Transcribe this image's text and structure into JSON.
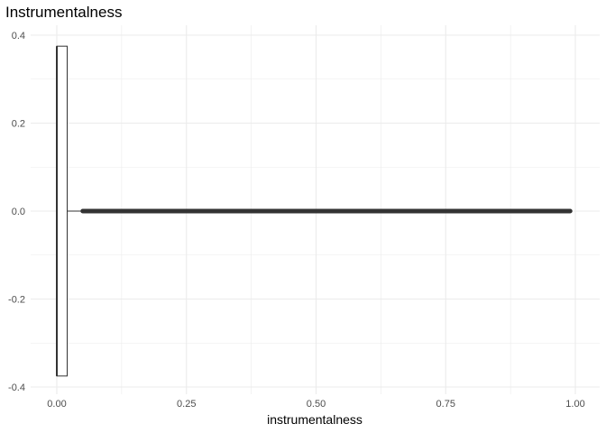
{
  "chart_data": {
    "type": "boxplot",
    "title": "Instrumentalness",
    "xlabel": "instrumentalness",
    "ylabel": "",
    "xlim": [
      -0.03,
      1.01
    ],
    "ylim": [
      -0.4,
      0.41
    ],
    "x_ticks": [
      {
        "value": 0.0,
        "label": "0.00"
      },
      {
        "value": 0.25,
        "label": "0.25"
      },
      {
        "value": 0.5,
        "label": "0.50"
      },
      {
        "value": 0.75,
        "label": "0.75"
      },
      {
        "value": 1.0,
        "label": "1.00"
      }
    ],
    "y_ticks": [
      {
        "value": 0.4,
        "label": "0.4"
      },
      {
        "value": 0.2,
        "label": "0.2"
      },
      {
        "value": 0.0,
        "label": "0.0"
      },
      {
        "value": -0.2,
        "label": "-0.2"
      },
      {
        "value": -0.4,
        "label": "-0.4"
      }
    ],
    "grid": true,
    "box": {
      "min": 0.0,
      "q1": 0.0,
      "median": 0.0,
      "q3": 0.02,
      "upper_whisker": 0.05,
      "y_center": 0.0,
      "half_height": 0.375
    },
    "outliers": {
      "range": [
        0.05,
        0.99
      ],
      "y": 0.0,
      "description": "dense continuous outlier points"
    },
    "colors": {
      "grid": "#ebebeb",
      "box_stroke": "#333333",
      "outlier": "#333333",
      "tick_label": "#4d4d4d"
    }
  }
}
